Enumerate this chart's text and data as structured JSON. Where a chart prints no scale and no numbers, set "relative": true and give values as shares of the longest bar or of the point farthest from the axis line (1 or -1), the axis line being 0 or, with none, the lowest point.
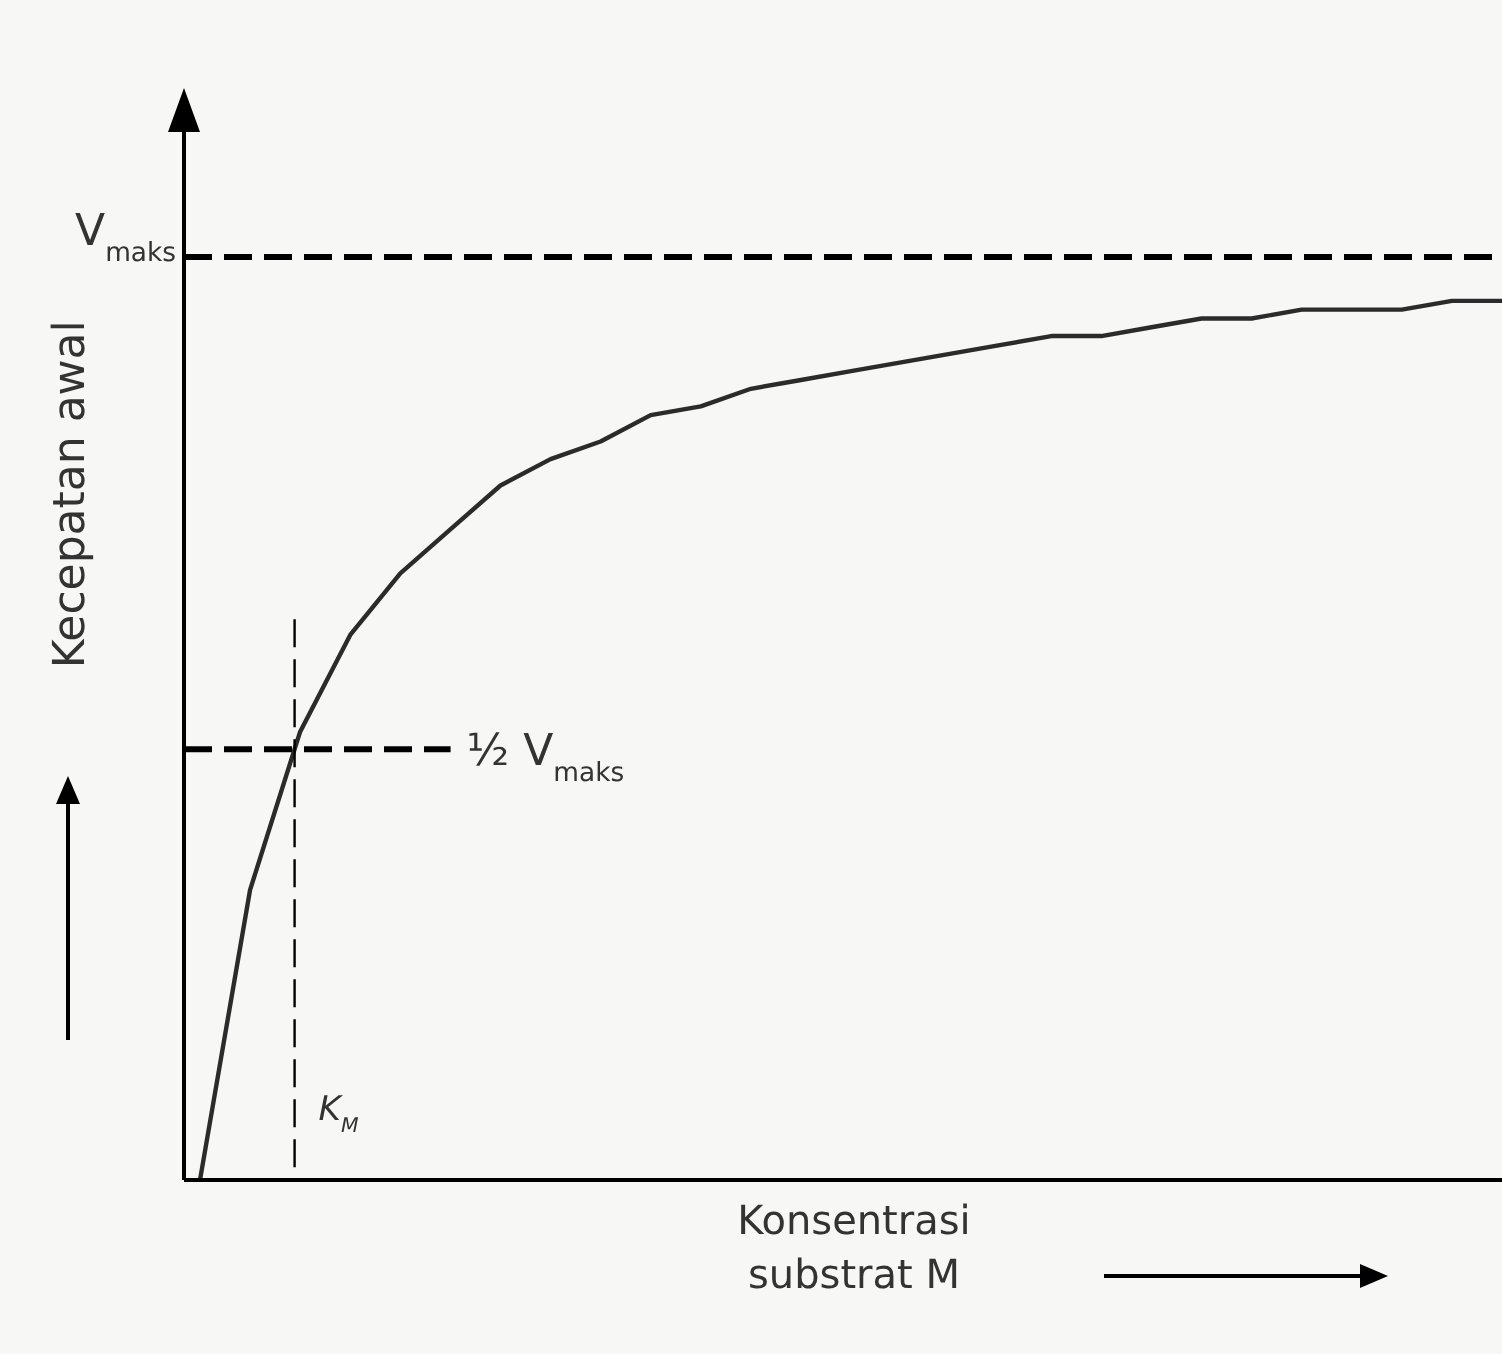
{
  "chart_data": {
    "type": "line",
    "relative": true,
    "xlabel": "Konsentrasi\nsubstrat M",
    "ylabel": "Kecepatan awal",
    "categories": [
      null,
      null,
      null,
      null,
      null,
      null,
      null,
      null,
      null,
      null,
      null,
      null,
      null,
      null,
      null,
      null,
      null,
      null,
      null,
      null,
      null,
      null,
      null,
      null,
      null,
      null,
      null
    ],
    "series": [
      {
        "color": "#2b2b2b",
        "values": [
          0,
          0.33,
          0.51,
          0.62,
          0.69,
          0.74,
          0.79,
          0.82,
          0.84,
          0.87,
          0.88,
          0.9,
          0.91,
          0.92,
          0.93,
          0.94,
          0.95,
          0.96,
          0.96,
          0.97,
          0.98,
          0.98,
          0.99,
          0.99,
          0.99,
          1,
          1
        ]
      }
    ],
    "ref_lines": [
      {
        "axis": "y",
        "value": 1.05,
        "label": "V$_{maks}$",
        "color": "#000000",
        "line_style": "dashed"
      },
      {
        "axis": "y",
        "value": 0.49,
        "label": "½ V$_{maks}$",
        "color": "#000000",
        "line_style": "dashed"
      }
    ],
    "annotations": [
      "K$_{M}$"
    ]
  }
}
